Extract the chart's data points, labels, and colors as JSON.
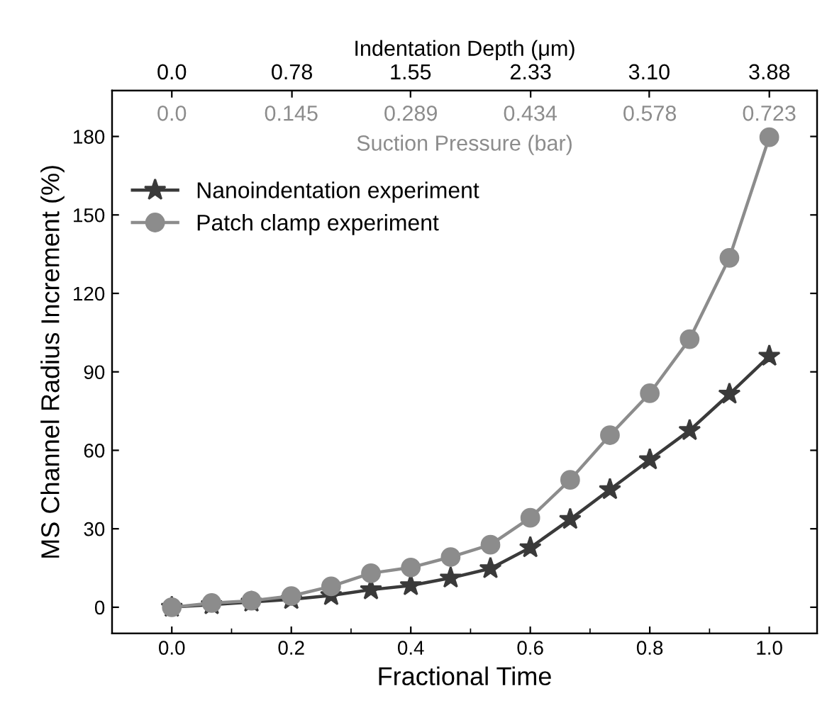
{
  "chart_data": {
    "type": "line",
    "xlabel": "Fractional Time",
    "ylabel": "MS Channel Radius Increment (%)",
    "x2label": "Indentation Depth (μm)",
    "annotations": [
      "0.0",
      "0.145",
      "0.289",
      "0.434",
      "0.578",
      "0.723",
      "Suction Pressure (bar)"
    ],
    "x": [
      0,
      0.0667,
      0.1333,
      0.2,
      0.2667,
      0.3333,
      0.4,
      0.4667,
      0.5333,
      0.6,
      0.6667,
      0.7333,
      0.8,
      0.8667,
      0.9333,
      1.0
    ],
    "series": [
      {
        "name": "Nanoindentation experiment",
        "color": "#3a3a3a",
        "marker": "star",
        "values": [
          0,
          1,
          2,
          3,
          4.5,
          6.7,
          8.3,
          11.2,
          14.8,
          22.8,
          33.6,
          45,
          56.4,
          67.6,
          81.5,
          96
        ]
      },
      {
        "name": "Patch clamp experiment",
        "color": "#8c8c8c",
        "marker": "circle",
        "values": [
          0,
          1.6,
          2.5,
          4.3,
          8,
          13,
          15.2,
          19.2,
          23.9,
          34.2,
          48.7,
          65.8,
          81.8,
          102.5,
          133.6,
          179.7
        ]
      }
    ],
    "xlim": [
      -0.1,
      1.08
    ],
    "xticks": [
      {
        "value": 0,
        "label": "0.0"
      },
      0.2,
      0.4,
      0.6,
      0.8,
      {
        "value": 1,
        "label": "1.0"
      }
    ],
    "ylim": [
      -10,
      197.5
    ],
    "yticks": [
      0,
      30,
      60,
      90,
      120,
      150,
      180
    ],
    "x2lim": [
      -0.388,
      4.19
    ],
    "x2ticks": [
      {
        "value": 0,
        "label": "0.0"
      },
      0.78,
      1.55,
      2.33,
      {
        "value": 3.1,
        "label": "3.10"
      },
      3.88
    ],
    "legend": "top left",
    "line_style": "solid",
    "grid": false
  }
}
